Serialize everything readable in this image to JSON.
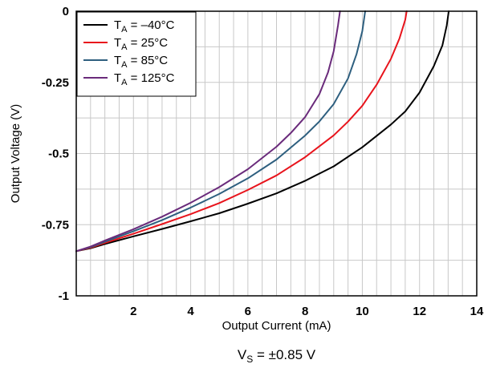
{
  "chart_data": {
    "type": "line",
    "xlabel": "Output Current (mA)",
    "ylabel": "Output Voltage (V)",
    "xlim": [
      0,
      14
    ],
    "ylim": [
      -1,
      0
    ],
    "x_ticks": [
      2,
      4,
      6,
      8,
      10,
      12,
      14
    ],
    "x_tick_labels": [
      "2",
      "4",
      "6",
      "8",
      "10",
      "12",
      "14"
    ],
    "y_ticks": [
      0,
      -0.25,
      -0.5,
      -0.75,
      -1
    ],
    "y_tick_labels": [
      "0",
      "-0.25",
      "-0.5",
      "-0.75",
      "-1"
    ],
    "grid": true,
    "legend_position": "top-left",
    "caption": {
      "prefix": "V",
      "sub": "S",
      "suffix": " = ±0.85 V"
    },
    "series": [
      {
        "name": "T_A = –40°C",
        "label_main": "T",
        "label_sub": "A",
        "label_rest": " = –40°C",
        "color": "#000000",
        "points": [
          [
            0.0,
            -0.843
          ],
          [
            0.5,
            -0.833
          ],
          [
            1,
            -0.818
          ],
          [
            2,
            -0.791
          ],
          [
            3,
            -0.765
          ],
          [
            4,
            -0.738
          ],
          [
            5,
            -0.71
          ],
          [
            6,
            -0.676
          ],
          [
            7,
            -0.64
          ],
          [
            8,
            -0.596
          ],
          [
            9,
            -0.545
          ],
          [
            10,
            -0.478
          ],
          [
            11,
            -0.398
          ],
          [
            11.5,
            -0.352
          ],
          [
            12,
            -0.286
          ],
          [
            12.5,
            -0.193
          ],
          [
            12.8,
            -0.12
          ],
          [
            12.95,
            -0.05
          ],
          [
            13.02,
            0
          ]
        ]
      },
      {
        "name": "T_A = 25°C",
        "label_main": "T",
        "label_sub": "A",
        "label_rest": " = 25°C",
        "color": "#e8141c",
        "points": [
          [
            0.0,
            -0.843
          ],
          [
            0.5,
            -0.831
          ],
          [
            1,
            -0.814
          ],
          [
            2,
            -0.782
          ],
          [
            3,
            -0.748
          ],
          [
            4,
            -0.713
          ],
          [
            5,
            -0.674
          ],
          [
            6,
            -0.628
          ],
          [
            7,
            -0.577
          ],
          [
            8,
            -0.513
          ],
          [
            9,
            -0.436
          ],
          [
            9.5,
            -0.388
          ],
          [
            10,
            -0.332
          ],
          [
            10.5,
            -0.258
          ],
          [
            11,
            -0.167
          ],
          [
            11.3,
            -0.095
          ],
          [
            11.5,
            -0.03
          ],
          [
            11.55,
            0
          ]
        ]
      },
      {
        "name": "T_A = 85°C",
        "label_main": "T",
        "label_sub": "A",
        "label_rest": " = 85°C",
        "color": "#2e5f7f",
        "points": [
          [
            0.0,
            -0.843
          ],
          [
            0.5,
            -0.829
          ],
          [
            1,
            -0.81
          ],
          [
            2,
            -0.773
          ],
          [
            3,
            -0.734
          ],
          [
            4,
            -0.69
          ],
          [
            5,
            -0.642
          ],
          [
            6,
            -0.587
          ],
          [
            7,
            -0.521
          ],
          [
            8,
            -0.437
          ],
          [
            8.5,
            -0.387
          ],
          [
            9,
            -0.326
          ],
          [
            9.5,
            -0.236
          ],
          [
            9.8,
            -0.15
          ],
          [
            10,
            -0.07
          ],
          [
            10.1,
            0
          ]
        ]
      },
      {
        "name": "T_A = 125°C",
        "label_main": "T",
        "label_sub": "A",
        "label_rest": " = 125°C",
        "color": "#6a2b7b",
        "points": [
          [
            0.0,
            -0.843
          ],
          [
            0.5,
            -0.827
          ],
          [
            1,
            -0.806
          ],
          [
            2,
            -0.766
          ],
          [
            3,
            -0.722
          ],
          [
            4,
            -0.673
          ],
          [
            5,
            -0.618
          ],
          [
            6,
            -0.555
          ],
          [
            7,
            -0.476
          ],
          [
            7.5,
            -0.428
          ],
          [
            8,
            -0.372
          ],
          [
            8.5,
            -0.291
          ],
          [
            8.8,
            -0.215
          ],
          [
            9,
            -0.14
          ],
          [
            9.15,
            -0.05
          ],
          [
            9.22,
            0
          ]
        ]
      }
    ]
  }
}
